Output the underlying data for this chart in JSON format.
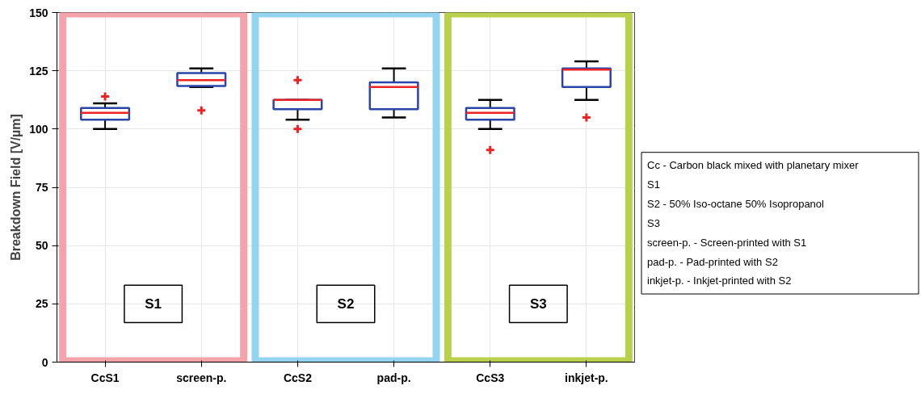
{
  "chart_data": {
    "type": "box",
    "ylabel": "Breakdown Field [V/µm]",
    "categories": [
      "CcS1",
      "screen-p.",
      "CcS2",
      "pad-p.",
      "CcS3",
      "inkjet-p."
    ],
    "series": [
      {
        "color": "#2b44a8",
        "boxes": [
          {
            "low": 100,
            "q1": 104,
            "median": 107,
            "q3": 109,
            "high": 111,
            "outliers": [
              114
            ]
          },
          {
            "low": 118,
            "q1": 118.5,
            "median": 121,
            "q3": 124,
            "high": 126,
            "outliers": [
              108
            ]
          },
          {
            "low": 104,
            "q1": 108.5,
            "median": 112.5,
            "q3": 112.5,
            "high": 112.5,
            "outliers": [
              121,
              100
            ]
          },
          {
            "low": 105,
            "q1": 108.5,
            "median": 118,
            "q3": 120,
            "high": 126
          },
          {
            "low": 100,
            "q1": 104,
            "median": 107,
            "q3": 109,
            "high": 112.5,
            "outliers": [
              91
            ]
          },
          {
            "low": 112.5,
            "q1": 118,
            "median": 125.5,
            "q3": 126,
            "high": 129,
            "outliers": [
              105
            ]
          }
        ]
      }
    ],
    "ylim": [
      0,
      150
    ],
    "yticks": [
      0,
      25,
      50,
      75,
      100,
      125,
      150
    ],
    "grid": true,
    "annotations": [
      "S1",
      "S2",
      "S3",
      "Cc - Carbon black mixed with planetary mixer",
      "S1",
      "S2 - 50% Iso-octane 50% Isopropanol",
      "S3",
      "screen-p. - Screen-printed with S1",
      "pad-p. - Pad-printed with S2",
      "inkjet-p. - Inkjet-printed with S2"
    ]
  }
}
